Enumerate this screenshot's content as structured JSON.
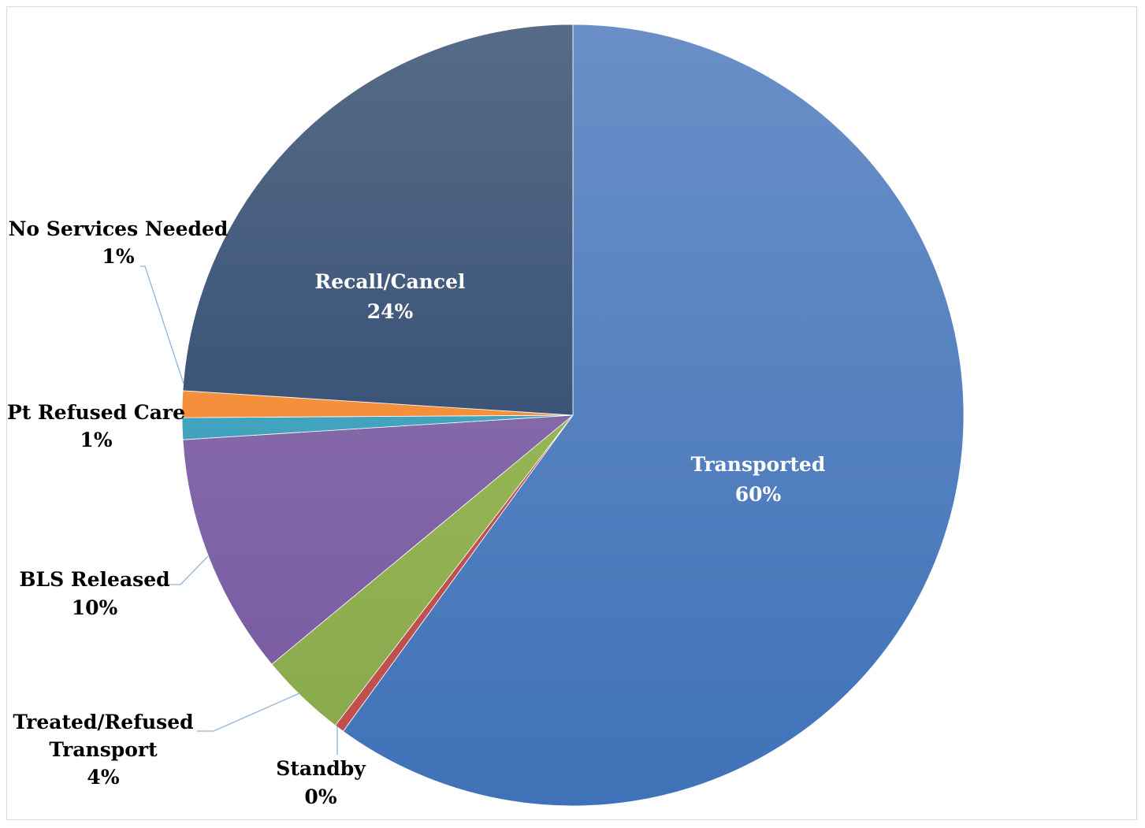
{
  "chart_data": {
    "type": "pie",
    "title": "",
    "start_angle_deg": 0,
    "direction": "clockwise",
    "slices": [
      {
        "name": "Transported",
        "value": 60.0,
        "label": "60%",
        "color_top": "#6a8fc7",
        "color_bottom": "#3f72b8"
      },
      {
        "name": "Standby",
        "value": 0.4,
        "label": "0%",
        "color_top": "#c0504d",
        "color_bottom": "#c0504d"
      },
      {
        "name": "Treated/Refused Transport",
        "value": 3.6,
        "label": "4%",
        "color_top": "#a6c162",
        "color_bottom": "#86a84a"
      },
      {
        "name": "BLS Released",
        "value": 10.0,
        "label": "10%",
        "color_top": "#957ab3",
        "color_bottom": "#7556a0"
      },
      {
        "name": "Pt Refused Care",
        "value": 0.9,
        "label": "1%",
        "color_top": "#4bacc6",
        "color_bottom": "#3a9ab8"
      },
      {
        "name": "No Services Needed",
        "value": 1.1,
        "label": "1%",
        "color_top": "#f79646",
        "color_bottom": "#f08a30"
      },
      {
        "name": "Recall/Cancel",
        "value": 24.0,
        "label": "24%",
        "color_top": "#566b87",
        "color_bottom": "#1f3c68"
      }
    ],
    "legend": "none"
  }
}
